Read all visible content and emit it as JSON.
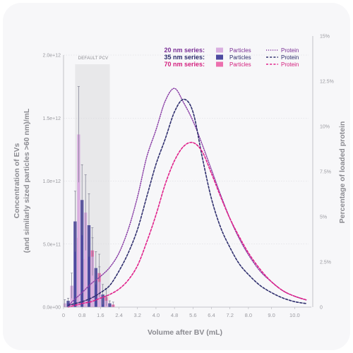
{
  "chart_data": {
    "type": "bar+line",
    "title": "",
    "xlabel": "Volume after BV (mL)",
    "ylabel_left_lines": [
      "Concentration of EVs",
      "(and similarly sized particles >60 nm)/mL"
    ],
    "ylabel_right": "Percentage of loaded protein",
    "x_ticks": [
      "0",
      "0.8",
      "1.6",
      "2.4",
      "3.2",
      "4.0",
      "4.8",
      "5.6",
      "6.4",
      "7.2",
      "8.0",
      "9.0",
      "10.0"
    ],
    "x_tick_values": [
      0,
      0.8,
      1.6,
      2.4,
      3.2,
      4.0,
      4.8,
      5.6,
      6.4,
      7.2,
      8.0,
      9.0,
      10.0
    ],
    "xlim": [
      0,
      10.6
    ],
    "y_left_ticks": [
      "0.0e+00",
      "5.0e+11",
      "1.0e+12",
      "1.5e+12",
      "2.0e+12"
    ],
    "y_left_tick_values": [
      0,
      500000000000.0,
      1000000000000.0,
      1500000000000.0,
      2000000000000.0
    ],
    "ylim_left": [
      0,
      2000000000000.0
    ],
    "y_right_ticks": [
      "0",
      "2.5%",
      "5%",
      "7.5%",
      "10%",
      "12.5%",
      "15%"
    ],
    "y_right_tick_values": [
      0,
      2.5,
      5,
      7.5,
      10,
      12.5,
      15
    ],
    "ylim_right": [
      0,
      15
    ],
    "pcv_region": {
      "label": "DEFAULT PCV",
      "x_range": [
        0.5,
        2.0
      ]
    },
    "legend": {
      "series_labels": [
        "20 nm series:",
        "35 nm series:",
        "70 nm series:"
      ],
      "particles_label": "Particles",
      "protein_label": "Protein"
    },
    "colors": {
      "20nm_bar": "#d9aee0",
      "20nm_line": "#8a3fa6",
      "20nm_text": "#7a2f95",
      "35nm_bar": "#4e4aa0",
      "35nm_line": "#2f2f6e",
      "35nm_text": "#2a2a6a",
      "70nm_bar": "#ec6fae",
      "70nm_line": "#e0218a",
      "70nm_text": "#d4207e",
      "pcv_shade": "#e8e8ea",
      "grid": "#d6d6dc",
      "errorbar": "#7d7d90"
    },
    "particles": {
      "x": [
        0.2,
        0.5,
        0.8,
        1.1,
        1.4,
        1.7,
        2.0
      ],
      "series": [
        {
          "name": "20 nm",
          "values": [
            30000000000.0,
            170000000000.0,
            1370000000000.0,
            750000000000.0,
            400000000000.0,
            200000000000.0,
            50000000000.0
          ],
          "err": [
            30000000000.0,
            100000000000.0,
            380000000000.0,
            300000000000.0,
            150000000000.0,
            120000000000.0,
            40000000000.0
          ]
        },
        {
          "name": "35 nm",
          "values": [
            50000000000.0,
            680000000000.0,
            850000000000.0,
            650000000000.0,
            310000000000.0,
            100000000000.0,
            30000000000.0
          ],
          "err": [
            20000000000.0,
            240000000000.0,
            280000000000.0,
            250000000000.0,
            130000000000.0,
            80000000000.0,
            20000000000.0
          ]
        },
        {
          "name": "70 nm",
          "values": [
            20000000000.0,
            550000000000.0,
            380000000000.0,
            450000000000.0,
            270000000000.0,
            80000000000.0,
            20000000000.0
          ],
          "err": [
            20000000000.0,
            180000000000.0,
            160000000000.0,
            180000000000.0,
            150000000000.0,
            70000000000.0,
            20000000000.0
          ]
        }
      ]
    },
    "protein": {
      "series": [
        {
          "name": "20 nm",
          "x": [
            0.2,
            0.8,
            1.2,
            1.6,
            2.0,
            2.4,
            2.8,
            3.2,
            3.6,
            4.0,
            4.4,
            4.8,
            5.2,
            5.6,
            6.0,
            6.4,
            6.8,
            7.2,
            7.6,
            8.0,
            8.5,
            9.0,
            9.5,
            10.0,
            10.5
          ],
          "y": [
            0.1,
            0.8,
            1.3,
            1.7,
            2.2,
            3.0,
            4.3,
            6.1,
            8.3,
            9.8,
            11.4,
            12.1,
            11.3,
            10.3,
            9.0,
            7.6,
            6.2,
            4.9,
            3.8,
            2.9,
            2.0,
            1.4,
            0.9,
            0.6,
            0.4
          ]
        },
        {
          "name": "35 nm",
          "x": [
            0.2,
            0.8,
            1.2,
            1.6,
            2.0,
            2.4,
            2.8,
            3.2,
            3.6,
            4.0,
            4.4,
            4.8,
            5.2,
            5.6,
            6.0,
            6.4,
            6.8,
            7.2,
            7.6,
            8.0,
            8.5,
            9.0,
            9.5,
            10.0,
            10.5
          ],
          "y": [
            0.1,
            0.3,
            0.5,
            0.8,
            1.2,
            2.0,
            3.0,
            4.3,
            6.1,
            7.9,
            9.3,
            10.8,
            11.5,
            10.8,
            8.3,
            6.0,
            4.4,
            3.3,
            2.4,
            1.8,
            1.2,
            0.8,
            0.5,
            0.3,
            0.2
          ]
        },
        {
          "name": "70 nm",
          "x": [
            0.2,
            0.8,
            1.2,
            1.6,
            2.0,
            2.4,
            2.8,
            3.2,
            3.6,
            4.0,
            4.4,
            4.8,
            5.2,
            5.6,
            6.0,
            6.4,
            6.8,
            7.2,
            7.6,
            8.0,
            8.5,
            9.0,
            9.5,
            10.0,
            10.5
          ],
          "y": [
            0.0,
            0.2,
            0.3,
            0.5,
            0.7,
            1.0,
            1.5,
            2.3,
            3.6,
            5.1,
            6.8,
            8.1,
            8.9,
            9.1,
            8.6,
            7.4,
            6.1,
            4.9,
            3.9,
            3.0,
            2.1,
            1.4,
            0.9,
            0.6,
            0.4
          ]
        }
      ]
    }
  }
}
